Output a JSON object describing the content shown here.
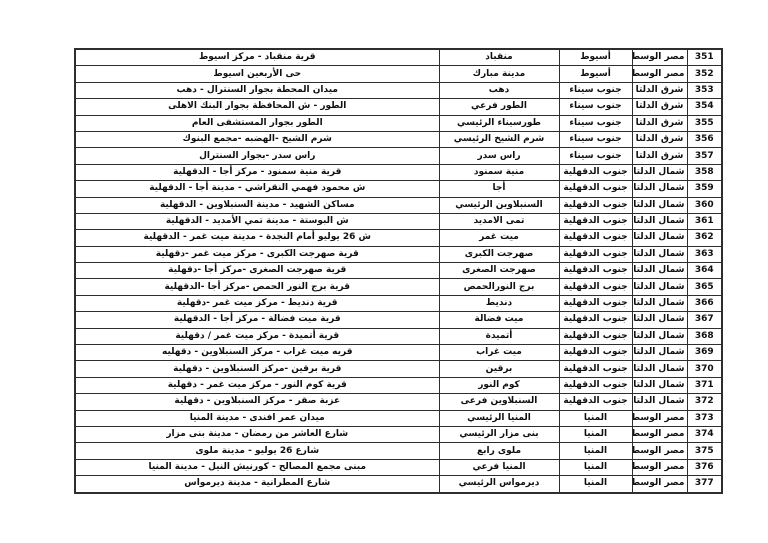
{
  "table": {
    "columns": [
      {
        "key": "no"
      },
      {
        "key": "region"
      },
      {
        "key": "governorate"
      },
      {
        "key": "branch"
      },
      {
        "key": "address"
      }
    ],
    "rows": [
      {
        "no": "351",
        "region": "مصر الوسطي",
        "governorate": "أسيوط",
        "branch": "منقباد",
        "address": "قرية منقباد - مركز اسيوط"
      },
      {
        "no": "352",
        "region": "مصر الوسطي",
        "governorate": "أسيوط",
        "branch": "مدينة مبارك",
        "address": "حى الأربعين اسيوط"
      },
      {
        "no": "353",
        "region": "شرق الدلتا",
        "governorate": "جنوب سيناء",
        "branch": "دهب",
        "address": "ميدان المحطة بجوار السنترال - دهب"
      },
      {
        "no": "354",
        "region": "شرق الدلتا",
        "governorate": "جنوب سيناء",
        "branch": "الطور فرعي",
        "address": "الطور - ش المحافظة بجوار البنك الاهلى"
      },
      {
        "no": "355",
        "region": "شرق الدلتا",
        "governorate": "جنوب سيناء",
        "branch": "طورسيناء الرئيسي",
        "address": "الطور بجوار المستشفى العام"
      },
      {
        "no": "356",
        "region": "شرق الدلتا",
        "governorate": "جنوب سيناء",
        "branch": "شرم الشيخ الرئيسي",
        "address": "شرم الشيخ -الهضبه -مجمع البنوك"
      },
      {
        "no": "357",
        "region": "شرق الدلتا",
        "governorate": "جنوب سيناء",
        "branch": "راس سدر",
        "address": "راس سدر -بجوار السنترال"
      },
      {
        "no": "358",
        "region": "شمال الدلتا",
        "governorate": "جنوب الدقهلية",
        "branch": "منية سمنود",
        "address": "قرية منية سمنود - مركز أجا - الدقهلية"
      },
      {
        "no": "359",
        "region": "شمال الدلتا",
        "governorate": "جنوب الدقهلية",
        "branch": "أجا",
        "address": "ش محمود فهمي النقراشي - مدينة أجا - الدقهلية"
      },
      {
        "no": "360",
        "region": "شمال الدلتا",
        "governorate": "جنوب الدقهلية",
        "branch": "السنبلاوين الرئيسي",
        "address": "مساكن الشهيد - مدينة السنبلاوين - الدقهلية"
      },
      {
        "no": "361",
        "region": "شمال الدلتا",
        "governorate": "جنوب الدقهلية",
        "branch": "تمى الامديد",
        "address": "ش البوستة - مدينة تمي الأمديد - الدقهلية"
      },
      {
        "no": "362",
        "region": "شمال الدلتا",
        "governorate": "جنوب الدقهلية",
        "branch": "ميت غمر",
        "address": "ش 26 يوليو أمام النجدة - مدينة ميت غمر - الدقهلية"
      },
      {
        "no": "363",
        "region": "شمال الدلتا",
        "governorate": "جنوب الدقهلية",
        "branch": "صهرجت الكبرى",
        "address": "قرية صهرجت الكبرى - مركز ميت غمر -دقهلية"
      },
      {
        "no": "364",
        "region": "شمال الدلتا",
        "governorate": "جنوب الدقهلية",
        "branch": "صهرجت الصغرى",
        "address": "قرية صهرجت الصغرى -مركز أجا -دقهلية"
      },
      {
        "no": "365",
        "region": "شمال الدلتا",
        "governorate": "جنوب الدقهلية",
        "branch": "برج النورالحمص",
        "address": "قرية برج النور الحمص -مركز أجا -الدقهلية"
      },
      {
        "no": "366",
        "region": "شمال الدلتا",
        "governorate": "جنوب الدقهلية",
        "branch": "دنديط",
        "address": "قرية دنديط - مركز ميت غمر -دقهلية"
      },
      {
        "no": "367",
        "region": "شمال الدلتا",
        "governorate": "جنوب الدقهلية",
        "branch": "ميت فضالة",
        "address": "قرية ميت فضالة - مركز أجا - الدقهلية"
      },
      {
        "no": "368",
        "region": "شمال الدلتا",
        "governorate": "جنوب الدقهلية",
        "branch": "أتميدة",
        "address": "قرية أتميدة - مركز ميت غمر / دقهلية"
      },
      {
        "no": "369",
        "region": "شمال الدلتا",
        "governorate": "جنوب الدقهلية",
        "branch": "ميت غراب",
        "address": "قريه ميت غراب - مركز السنبلاوين - دقهليه"
      },
      {
        "no": "370",
        "region": "شمال الدلتا",
        "governorate": "جنوب الدقهلية",
        "branch": "برقين",
        "address": "قرية برقين -مركز السنبلاوين - دقهلية"
      },
      {
        "no": "371",
        "region": "شمال الدلتا",
        "governorate": "جنوب الدقهلية",
        "branch": "كوم النور",
        "address": "قرية كوم النور - مركز ميت غمر - دقهلية"
      },
      {
        "no": "372",
        "region": "شمال الدلتا",
        "governorate": "جنوب الدقهلية",
        "branch": "السنبلاوين فرعى",
        "address": "عزبة صقر - مركز السنبلاوين - دقهلية"
      },
      {
        "no": "373",
        "region": "مصر الوسطى",
        "governorate": "المنيا",
        "branch": "المنيا الرئيسي",
        "address": "ميدان عمر افندى - مدينة المنيا"
      },
      {
        "no": "374",
        "region": "مصر الوسطى",
        "governorate": "المنيا",
        "branch": "بنى مزار الرئيسي",
        "address": "شارع العاشر من رمضان - مدينة بنى مزار"
      },
      {
        "no": "375",
        "region": "مصر الوسطى",
        "governorate": "المنيا",
        "branch": "ملوى رابع",
        "address": "شارع 26 يوليو - مدينة ملوى"
      },
      {
        "no": "376",
        "region": "مصر الوسطى",
        "governorate": "المنيا",
        "branch": "المنيا فرعي",
        "address": "مبنى مجمع المصالح - كورنيش النيل - مدينة المنيا"
      },
      {
        "no": "377",
        "region": "مصر الوسطى",
        "governorate": "المنيا",
        "branch": "ديرمواس الرئيسي",
        "address": "شارع المطرانية - مدينة ديرمواس"
      }
    ]
  }
}
